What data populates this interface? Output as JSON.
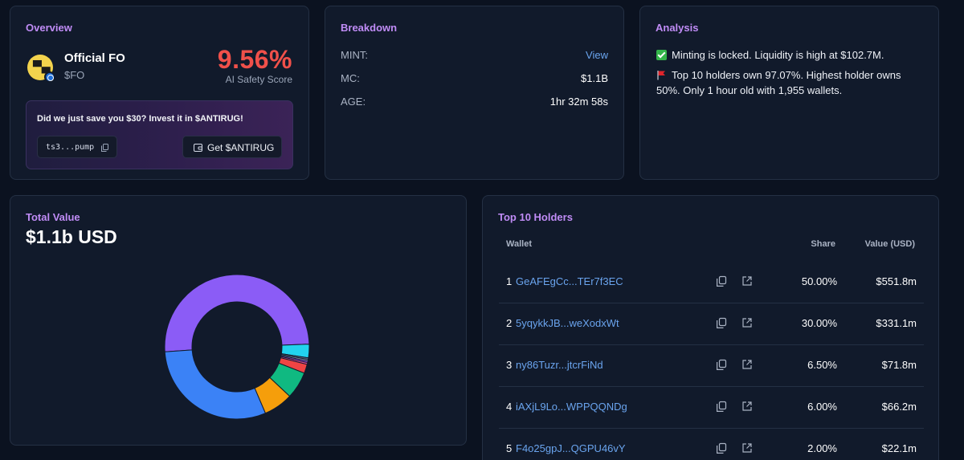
{
  "overview": {
    "title": "Overview",
    "token_name": "Official FO",
    "token_symbol": "$FO",
    "score_value": "9.56%",
    "score_label": "AI Safety Score",
    "promo_text": "Did we just save you $30? Invest it in $ANTIRUG!",
    "contract_short": "ts3...pump",
    "get_button": "Get $ANTIRUG"
  },
  "breakdown": {
    "title": "Breakdown",
    "rows": [
      {
        "label": "MINT:",
        "value": "View"
      },
      {
        "label": "MC:",
        "value": "$1.1B"
      },
      {
        "label": "AGE:",
        "value": "1hr 32m 58s"
      }
    ]
  },
  "analysis": {
    "title": "Analysis",
    "line1": "Minting is locked. Liquidity is high at $102.7M.",
    "line2": "Top 10 holders own 97.07%. Highest holder owns 50%. Only 1 hour old with 1,955 wallets."
  },
  "total_value": {
    "title": "Total Value",
    "amount": "$1.1b USD"
  },
  "chart_data": {
    "type": "pie",
    "donut": true,
    "slices": [
      {
        "value": 50.0,
        "color": "#8b5cf6"
      },
      {
        "value": 3.0,
        "color": "#22d3ee"
      },
      {
        "value": 0.35,
        "color": "#64748b"
      },
      {
        "value": 0.35,
        "color": "#94a3b8"
      },
      {
        "value": 0.35,
        "color": "#a855f7"
      },
      {
        "value": 0.4,
        "color": "#ec4899"
      },
      {
        "value": 2.0,
        "color": "#ef4444"
      },
      {
        "value": 6.0,
        "color": "#10b981"
      },
      {
        "value": 6.5,
        "color": "#f59e0b"
      },
      {
        "value": 30.0,
        "color": "#3b82f6"
      }
    ]
  },
  "holders": {
    "title": "Top 10 Holders",
    "columns": {
      "wallet": "Wallet",
      "share": "Share",
      "value": "Value (USD)"
    },
    "rows": [
      {
        "rank": "1",
        "wallet": "GeAFEgCc...TEr7f3EC",
        "share": "50.00%",
        "value": "$551.8m"
      },
      {
        "rank": "2",
        "wallet": "5yqykkJB...weXodxWt",
        "share": "30.00%",
        "value": "$331.1m"
      },
      {
        "rank": "3",
        "wallet": "ny86Tuzr...jtcrFiNd",
        "share": "6.50%",
        "value": "$71.8m"
      },
      {
        "rank": "4",
        "wallet": "iAXjL9Lo...WPPQQNDg",
        "share": "6.00%",
        "value": "$66.2m"
      },
      {
        "rank": "5",
        "wallet": "F4o25gpJ...QGPU46vY",
        "share": "2.00%",
        "value": "$22.1m"
      }
    ]
  }
}
